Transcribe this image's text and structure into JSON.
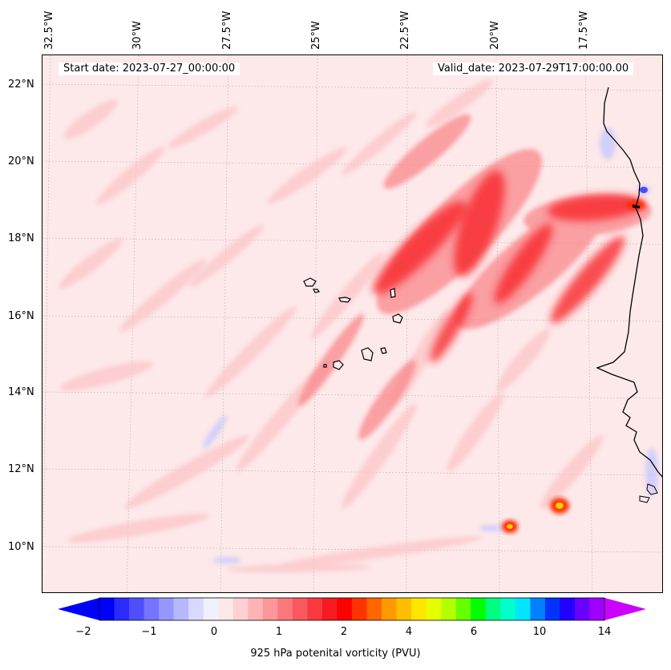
{
  "header": {
    "start_date": "Start date: 2023-07-27_00:00:00",
    "valid_date": "Valid_date: 2023-07-29T17:00:00.00"
  },
  "axes": {
    "longitude_labels": [
      "32.5°W",
      "30°W",
      "27.5°W",
      "25°W",
      "22.5°W",
      "20°W",
      "17.5°W"
    ],
    "latitude_labels": [
      "22°N",
      "20°N",
      "18°N",
      "16°N",
      "14°N",
      "12°N",
      "10°N"
    ]
  },
  "colorbar": {
    "label": "925 hPa potenital vorticity (PVU)",
    "tick_labels": [
      "−2",
      "−1",
      "0",
      "1",
      "2",
      "4",
      "6",
      "10",
      "14"
    ],
    "colors": [
      "#0000ff",
      "#2b2bff",
      "#4f4fff",
      "#7474ff",
      "#9797ff",
      "#b8b8ff",
      "#d9d9ff",
      "#f0f0ff",
      "#fde9ea",
      "#fdd0d2",
      "#fcb4b7",
      "#fb9699",
      "#fa777b",
      "#f9585d",
      "#f8393f",
      "#f71a20",
      "#ff0000",
      "#ff3300",
      "#ff6600",
      "#ff9900",
      "#ffbf00",
      "#ffe600",
      "#e6ff00",
      "#b3ff00",
      "#66ff00",
      "#00ff00",
      "#00ff80",
      "#00ffcc",
      "#00e6ff",
      "#0080ff",
      "#0033ff",
      "#2200ff",
      "#6a00ff",
      "#a000ff"
    ],
    "extend_low": "#0000ff",
    "extend_high": "#cc00ff"
  },
  "map": {
    "background_level_color": "#fde9ea",
    "coastline_color": "#000000",
    "gridline_color": "#bbbbbb"
  }
}
